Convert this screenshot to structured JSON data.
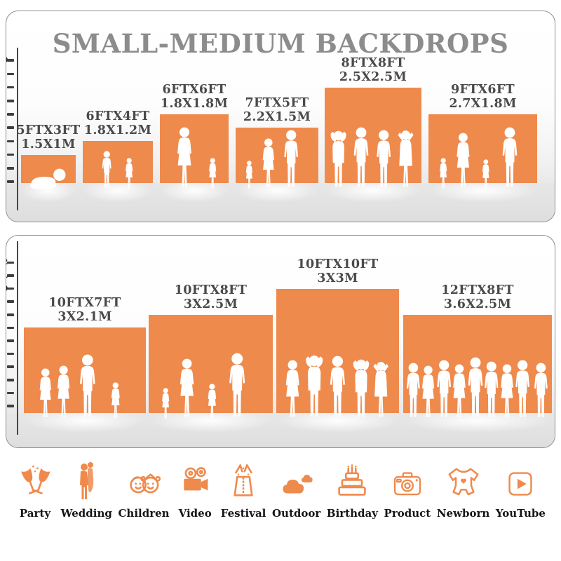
{
  "header": {
    "title": "SMALL-MEDIUM BACKDROPS"
  },
  "colors": {
    "accent_orange": "#EF8A4D",
    "title_gray": "#8C8C8C",
    "bar_label_gray": "#4A4A4A",
    "tick_dark": "#3F3F3F",
    "floor_gray": "#E0E0E0",
    "panel_border": "#8E8E8E",
    "silhouette": "#FFFFFF"
  },
  "chart_data": [
    {
      "type": "bar",
      "title": "SMALL-MEDIUM BACKDROPS",
      "xlabel": "",
      "ylabel": "",
      "y_ticks": [
        1,
        2,
        3,
        4,
        5,
        6,
        7,
        8,
        9,
        10
      ],
      "ylim": [
        0,
        10
      ],
      "grid": false,
      "legend": false,
      "categories": [
        "5FTX3FT",
        "6FTX4FT",
        "6FTX6FT",
        "7FTX5FT",
        "8FTX8FT",
        "9FTX6FT"
      ],
      "series": [
        {
          "name": "height_ft",
          "values": [
            3,
            4,
            6,
            5,
            8,
            6
          ]
        },
        {
          "name": "width_ft",
          "values": [
            5,
            6,
            6,
            7,
            8,
            9
          ]
        }
      ],
      "bars": [
        {
          "size_ft": "5FTX3FT",
          "size_m": "1.5X1M",
          "width_ft": 5,
          "height_ft": 3,
          "figures": "crawling baby"
        },
        {
          "size_ft": "6FTX4FT",
          "size_m": "1.8X1.2M",
          "width_ft": 6,
          "height_ft": 4,
          "figures": "boy and girl"
        },
        {
          "size_ft": "6FTX6FT",
          "size_m": "1.8X1.8M",
          "width_ft": 6,
          "height_ft": 6,
          "figures": "mother holding baby with girl"
        },
        {
          "size_ft": "7FTX5FT",
          "size_m": "2.2X1.5M",
          "width_ft": 7,
          "height_ft": 5,
          "figures": "child, woman and man"
        },
        {
          "size_ft": "8FTX8FT",
          "size_m": "2.5X2.5M",
          "width_ft": 8,
          "height_ft": 8,
          "figures": "four adults posing"
        },
        {
          "size_ft": "9FTX6FT",
          "size_m": "2.7X1.8M",
          "width_ft": 9,
          "height_ft": 6,
          "figures": "family of four holding hands"
        }
      ]
    },
    {
      "type": "bar",
      "title": "",
      "xlabel": "",
      "ylabel": "",
      "y_ticks": [
        1,
        2,
        3,
        4,
        5,
        6,
        7,
        8,
        9,
        10,
        11,
        12
      ],
      "ylim": [
        0,
        12
      ],
      "grid": false,
      "legend": false,
      "categories": [
        "10FTX7FT",
        "10FTX8FT",
        "10FTX10FT",
        "12FTX8FT"
      ],
      "series": [
        {
          "name": "height_ft",
          "values": [
            7,
            8,
            10,
            8
          ]
        },
        {
          "name": "width_ft",
          "values": [
            10,
            10,
            10,
            12
          ]
        }
      ],
      "bars": [
        {
          "size_ft": "10FTX7FT",
          "size_m": "3X2.1M",
          "width_ft": 10,
          "height_ft": 7,
          "figures": "two women, man and girl"
        },
        {
          "size_ft": "10FTX8FT",
          "size_m": "3X2.5M",
          "width_ft": 10,
          "height_ft": 8,
          "figures": "family of four holding hands"
        },
        {
          "size_ft": "10FTX10FT",
          "size_m": "3X3M",
          "width_ft": 10,
          "height_ft": 10,
          "figures": "group of five adults"
        },
        {
          "size_ft": "12FTX8FT",
          "size_m": "3.6X2.5M",
          "width_ft": 12,
          "height_ft": 8,
          "figures": "crowd of nine people"
        }
      ]
    }
  ],
  "categories_row": [
    {
      "label": "Party",
      "icon": "party-icon"
    },
    {
      "label": "Wedding",
      "icon": "wedding-icon"
    },
    {
      "label": "Children",
      "icon": "children-icon"
    },
    {
      "label": "Video",
      "icon": "video-icon"
    },
    {
      "label": "Festival",
      "icon": "festival-icon"
    },
    {
      "label": "Outdoor",
      "icon": "outdoor-icon"
    },
    {
      "label": "Birthday",
      "icon": "birthday-icon"
    },
    {
      "label": "Product",
      "icon": "product-icon"
    },
    {
      "label": "Newborn",
      "icon": "newborn-icon"
    },
    {
      "label": "YouTube",
      "icon": "youtube-icon"
    }
  ]
}
